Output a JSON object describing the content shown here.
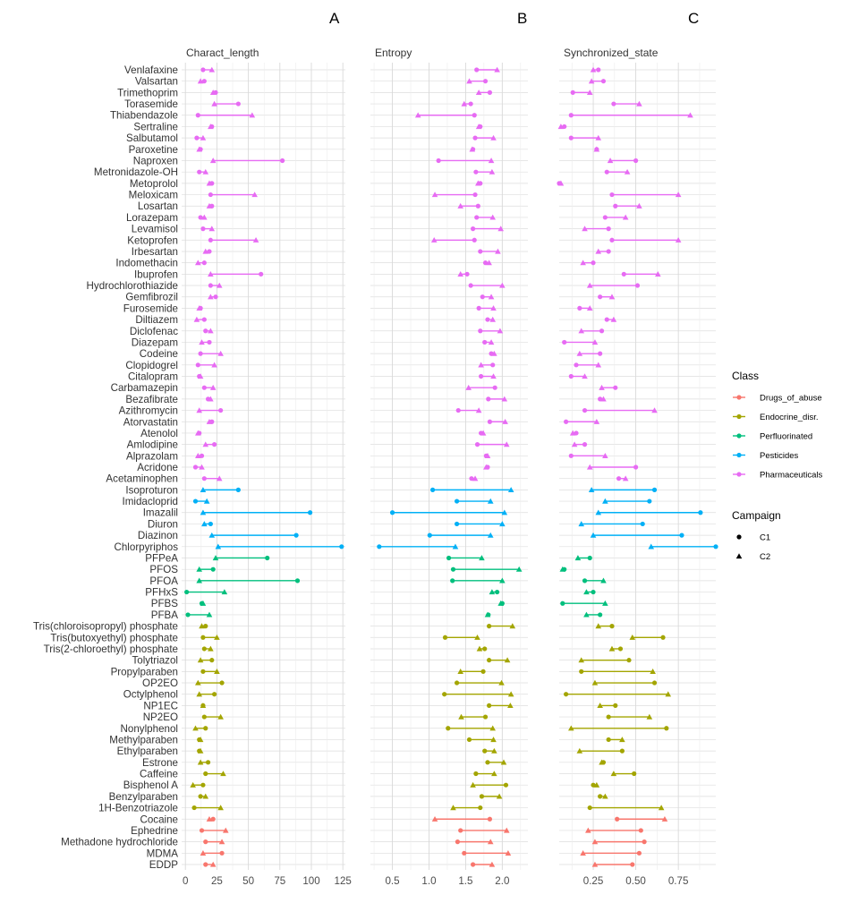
{
  "chart_data": {
    "type": "dumbbell",
    "panel_letters": [
      "A",
      "B",
      "C"
    ],
    "panels": [
      {
        "key": "char",
        "title": "Charact_length",
        "xlim": [
          -3,
          127
        ],
        "ticks": [
          0,
          25,
          50,
          75,
          100,
          125
        ]
      },
      {
        "key": "ent",
        "title": "Entropy",
        "xlim": [
          0.2,
          2.35
        ],
        "ticks": [
          0.5,
          1.0,
          1.5,
          2.0
        ],
        "tick_labels": [
          "0.5",
          "1.0",
          "1.5",
          "2.0"
        ]
      },
      {
        "key": "sync",
        "title": "Synchronized_state",
        "xlim": [
          0.05,
          0.97
        ],
        "ticks": [
          0.25,
          0.5,
          0.75
        ],
        "tick_labels": [
          "0.25",
          "0.50",
          "0.75"
        ]
      }
    ],
    "legend": {
      "class_title": "Class",
      "classes": [
        {
          "name": "Drugs_of_abuse",
          "color": "#F8766D"
        },
        {
          "name": "Endocrine_disr.",
          "color": "#A3A500"
        },
        {
          "name": "Perfluorinated",
          "color": "#00BF7D"
        },
        {
          "name": "Pesticides",
          "color": "#00B0F6"
        },
        {
          "name": "Pharmaceuticals",
          "color": "#E76BF3"
        }
      ],
      "campaign_title": "Campaign",
      "campaigns": [
        {
          "name": "C1",
          "shape": "circle"
        },
        {
          "name": "C2",
          "shape": "triangle"
        }
      ]
    },
    "compounds": [
      {
        "name": "Venlafaxine",
        "class": "Pharmaceuticals",
        "char": [
          14,
          21
        ],
        "ent": [
          1.65,
          1.93
        ],
        "sync": [
          0.28,
          0.25
        ]
      },
      {
        "name": "Valsartan",
        "class": "Pharmaceuticals",
        "char": [
          15,
          12
        ],
        "ent": [
          1.77,
          1.55
        ],
        "sync": [
          0.31,
          0.24
        ]
      },
      {
        "name": "Trimethoprim",
        "class": "Pharmaceuticals",
        "char": [
          24,
          22
        ],
        "ent": [
          1.83,
          1.68
        ],
        "sync": [
          0.13,
          0.23
        ]
      },
      {
        "name": "Torasemide",
        "class": "Pharmaceuticals",
        "char": [
          42,
          23
        ],
        "ent": [
          1.57,
          1.48
        ],
        "sync": [
          0.37,
          0.52
        ]
      },
      {
        "name": "Thiabendazole",
        "class": "Pharmaceuticals",
        "char": [
          10,
          53
        ],
        "ent": [
          1.62,
          0.85
        ],
        "sync": [
          0.12,
          0.82
        ]
      },
      {
        "name": "Sertraline",
        "class": "Pharmaceuticals",
        "char": [
          21,
          20
        ],
        "ent": [
          1.7,
          1.68
        ],
        "sync": [
          0.08,
          0.06
        ]
      },
      {
        "name": "Salbutamol",
        "class": "Pharmaceuticals",
        "char": [
          9,
          14
        ],
        "ent": [
          1.63,
          1.88
        ],
        "sync": [
          0.12,
          0.28
        ]
      },
      {
        "name": "Paroxetine",
        "class": "Pharmaceuticals",
        "char": [
          12,
          11
        ],
        "ent": [
          1.6,
          1.59
        ],
        "sync": [
          0.27,
          0.27
        ]
      },
      {
        "name": "Naproxen",
        "class": "Pharmaceuticals",
        "char": [
          77,
          22
        ],
        "ent": [
          1.13,
          1.85
        ],
        "sync": [
          0.5,
          0.35
        ]
      },
      {
        "name": "Metronidazole-OH",
        "class": "Pharmaceuticals",
        "char": [
          11,
          16
        ],
        "ent": [
          1.64,
          1.86
        ],
        "sync": [
          0.33,
          0.45
        ]
      },
      {
        "name": "Metoprolol",
        "class": "Pharmaceuticals",
        "char": [
          21,
          19
        ],
        "ent": [
          1.7,
          1.67
        ],
        "sync": [
          0.05,
          0.06
        ]
      },
      {
        "name": "Meloxicam",
        "class": "Pharmaceuticals",
        "char": [
          20,
          55
        ],
        "ent": [
          1.63,
          1.08
        ],
        "sync": [
          0.36,
          0.75
        ]
      },
      {
        "name": "Losartan",
        "class": "Pharmaceuticals",
        "char": [
          21,
          19
        ],
        "ent": [
          1.67,
          1.43
        ],
        "sync": [
          0.38,
          0.52
        ]
      },
      {
        "name": "Lorazepam",
        "class": "Pharmaceuticals",
        "char": [
          12,
          15
        ],
        "ent": [
          1.65,
          1.87
        ],
        "sync": [
          0.32,
          0.44
        ]
      },
      {
        "name": "Levamisol",
        "class": "Pharmaceuticals",
        "char": [
          14,
          21
        ],
        "ent": [
          1.6,
          1.98
        ],
        "sync": [
          0.34,
          0.2
        ]
      },
      {
        "name": "Ketoprofen",
        "class": "Pharmaceuticals",
        "char": [
          20,
          56
        ],
        "ent": [
          1.62,
          1.07
        ],
        "sync": [
          0.36,
          0.75
        ]
      },
      {
        "name": "Irbesartan",
        "class": "Pharmaceuticals",
        "char": [
          19,
          16
        ],
        "ent": [
          1.7,
          1.94
        ],
        "sync": [
          0.34,
          0.28
        ]
      },
      {
        "name": "Indomethacin",
        "class": "Pharmaceuticals",
        "char": [
          15,
          10
        ],
        "ent": [
          1.77,
          1.82
        ],
        "sync": [
          0.25,
          0.19
        ]
      },
      {
        "name": "Ibuprofen",
        "class": "Pharmaceuticals",
        "char": [
          60,
          20
        ],
        "ent": [
          1.52,
          1.43
        ],
        "sync": [
          0.43,
          0.63
        ]
      },
      {
        "name": "Hydrochlorothiazide",
        "class": "Pharmaceuticals",
        "char": [
          20,
          27
        ],
        "ent": [
          1.57,
          2.0
        ],
        "sync": [
          0.51,
          0.23
        ]
      },
      {
        "name": "Gemfibrozil",
        "class": "Pharmaceuticals",
        "char": [
          24,
          20
        ],
        "ent": [
          1.73,
          1.85
        ],
        "sync": [
          0.29,
          0.36
        ]
      },
      {
        "name": "Furosemide",
        "class": "Pharmaceuticals",
        "char": [
          12,
          11
        ],
        "ent": [
          1.68,
          1.88
        ],
        "sync": [
          0.17,
          0.23
        ]
      },
      {
        "name": "Diltiazem",
        "class": "Pharmaceuticals",
        "char": [
          15,
          9
        ],
        "ent": [
          1.8,
          1.87
        ],
        "sync": [
          0.33,
          0.37
        ]
      },
      {
        "name": "Diclofenac",
        "class": "Pharmaceuticals",
        "char": [
          16,
          20
        ],
        "ent": [
          1.7,
          1.97
        ],
        "sync": [
          0.3,
          0.18
        ]
      },
      {
        "name": "Diazepam",
        "class": "Pharmaceuticals",
        "char": [
          19,
          13
        ],
        "ent": [
          1.76,
          1.85
        ],
        "sync": [
          0.08,
          0.26
        ]
      },
      {
        "name": "Codeine",
        "class": "Pharmaceuticals",
        "char": [
          12,
          28
        ],
        "ent": [
          1.85,
          1.89
        ],
        "sync": [
          0.29,
          0.17
        ]
      },
      {
        "name": "Clopidogrel",
        "class": "Pharmaceuticals",
        "char": [
          10,
          23
        ],
        "ent": [
          1.87,
          1.71
        ],
        "sync": [
          0.15,
          0.28
        ]
      },
      {
        "name": "Citalopram",
        "class": "Pharmaceuticals",
        "char": [
          11,
          12
        ],
        "ent": [
          1.71,
          1.88
        ],
        "sync": [
          0.12,
          0.2
        ]
      },
      {
        "name": "Carbamazepin",
        "class": "Pharmaceuticals",
        "char": [
          15,
          22
        ],
        "ent": [
          1.9,
          1.54
        ],
        "sync": [
          0.38,
          0.3
        ]
      },
      {
        "name": "Bezafibrate",
        "class": "Pharmaceuticals",
        "char": [
          18,
          20
        ],
        "ent": [
          1.81,
          2.03
        ],
        "sync": [
          0.29,
          0.31
        ]
      },
      {
        "name": "Azithromycin",
        "class": "Pharmaceuticals",
        "char": [
          28,
          11
        ],
        "ent": [
          1.4,
          1.68
        ],
        "sync": [
          0.2,
          0.61
        ]
      },
      {
        "name": "Atorvastatin",
        "class": "Pharmaceuticals",
        "char": [
          21,
          19
        ],
        "ent": [
          1.83,
          2.04
        ],
        "sync": [
          0.09,
          0.27
        ]
      },
      {
        "name": "Atenolol",
        "class": "Pharmaceuticals",
        "char": [
          11,
          10
        ],
        "ent": [
          1.71,
          1.74
        ],
        "sync": [
          0.15,
          0.13
        ]
      },
      {
        "name": "Amlodipine",
        "class": "Pharmaceuticals",
        "char": [
          23,
          16
        ],
        "ent": [
          1.66,
          2.06
        ],
        "sync": [
          0.2,
          0.14
        ]
      },
      {
        "name": "Alprazolam",
        "class": "Pharmaceuticals",
        "char": [
          13,
          10
        ],
        "ent": [
          1.78,
          1.8
        ],
        "sync": [
          0.12,
          0.32
        ]
      },
      {
        "name": "Acridone",
        "class": "Pharmaceuticals",
        "char": [
          8,
          13
        ],
        "ent": [
          1.8,
          1.78
        ],
        "sync": [
          0.5,
          0.23
        ]
      },
      {
        "name": "Acetaminophen",
        "class": "Pharmaceuticals",
        "char": [
          15,
          27
        ],
        "ent": [
          1.58,
          1.63
        ],
        "sync": [
          0.4,
          0.44
        ]
      },
      {
        "name": "Isoproturon",
        "class": "Pesticides",
        "char": [
          42,
          14
        ],
        "ent": [
          1.05,
          2.12
        ],
        "sync": [
          0.61,
          0.24
        ]
      },
      {
        "name": "Imidacloprid",
        "class": "Pesticides",
        "char": [
          8,
          17
        ],
        "ent": [
          1.38,
          1.84
        ],
        "sync": [
          0.58,
          0.32
        ]
      },
      {
        "name": "Imazalil",
        "class": "Pesticides",
        "char": [
          99,
          14
        ],
        "ent": [
          0.5,
          2.03
        ],
        "sync": [
          0.88,
          0.28
        ]
      },
      {
        "name": "Diuron",
        "class": "Pesticides",
        "char": [
          20,
          15
        ],
        "ent": [
          1.38,
          2.0
        ],
        "sync": [
          0.54,
          0.18
        ]
      },
      {
        "name": "Diazinon",
        "class": "Pesticides",
        "char": [
          88,
          21
        ],
        "ent": [
          1.01,
          1.84
        ],
        "sync": [
          0.77,
          0.25
        ]
      },
      {
        "name": "Chlorpyriphos",
        "class": "Pesticides",
        "char": [
          124,
          26
        ],
        "ent": [
          0.32,
          1.36
        ],
        "sync": [
          0.97,
          0.59
        ]
      },
      {
        "name": "PFPeA",
        "class": "Perfluorinated",
        "char": [
          65,
          24
        ],
        "ent": [
          1.27,
          1.72
        ],
        "sync": [
          0.23,
          0.16
        ]
      },
      {
        "name": "PFOS",
        "class": "Perfluorinated",
        "char": [
          22,
          11
        ],
        "ent": [
          1.33,
          2.23
        ],
        "sync": [
          0.08,
          0.07
        ]
      },
      {
        "name": "PFOA",
        "class": "Perfluorinated",
        "char": [
          89,
          11
        ],
        "ent": [
          1.32,
          2.0
        ],
        "sync": [
          0.2,
          0.31
        ]
      },
      {
        "name": "PFHxS",
        "class": "Perfluorinated",
        "char": [
          1,
          31
        ],
        "ent": [
          1.93,
          1.86
        ],
        "sync": [
          0.25,
          0.21
        ]
      },
      {
        "name": "PFBS",
        "class": "Perfluorinated",
        "char": [
          13,
          14
        ],
        "ent": [
          2.0,
          1.98
        ],
        "sync": [
          0.07,
          0.32
        ]
      },
      {
        "name": "PFBA",
        "class": "Perfluorinated",
        "char": [
          2,
          19
        ],
        "ent": [
          1.81,
          1.8
        ],
        "sync": [
          0.29,
          0.21
        ]
      },
      {
        "name": "Tris(chloroisopropyl) phosphate",
        "class": "Endocrine_disr.",
        "char": [
          16,
          13
        ],
        "ent": [
          1.82,
          2.14
        ],
        "sync": [
          0.36,
          0.28
        ]
      },
      {
        "name": "Tris(butoxyethyl) phosphate",
        "class": "Endocrine_disr.",
        "char": [
          14,
          25
        ],
        "ent": [
          1.22,
          1.66
        ],
        "sync": [
          0.66,
          0.48
        ]
      },
      {
        "name": "Tris(2-chloroethyl) phosphate",
        "class": "Endocrine_disr.",
        "char": [
          15,
          20
        ],
        "ent": [
          1.76,
          1.69
        ],
        "sync": [
          0.41,
          0.36
        ]
      },
      {
        "name": "Tolytriazol",
        "class": "Endocrine_disr.",
        "char": [
          21,
          12
        ],
        "ent": [
          1.82,
          2.07
        ],
        "sync": [
          0.46,
          0.18
        ]
      },
      {
        "name": "Propylparaben",
        "class": "Endocrine_disr.",
        "char": [
          14,
          25
        ],
        "ent": [
          1.74,
          1.43
        ],
        "sync": [
          0.18,
          0.6
        ]
      },
      {
        "name": "OP2EO",
        "class": "Endocrine_disr.",
        "char": [
          29,
          10
        ],
        "ent": [
          1.38,
          1.99
        ],
        "sync": [
          0.61,
          0.26
        ]
      },
      {
        "name": "Octylphenol",
        "class": "Endocrine_disr.",
        "char": [
          23,
          11
        ],
        "ent": [
          1.21,
          2.12
        ],
        "sync": [
          0.09,
          0.69
        ]
      },
      {
        "name": "NP1EC",
        "class": "Endocrine_disr.",
        "char": [
          14,
          14
        ],
        "ent": [
          1.82,
          2.11
        ],
        "sync": [
          0.38,
          0.29
        ]
      },
      {
        "name": "NP2EO",
        "class": "Endocrine_disr.",
        "char": [
          15,
          28
        ],
        "ent": [
          1.77,
          1.44
        ],
        "sync": [
          0.34,
          0.58
        ]
      },
      {
        "name": "Nonylphenol",
        "class": "Endocrine_disr.",
        "char": [
          16,
          8
        ],
        "ent": [
          1.26,
          1.87
        ],
        "sync": [
          0.68,
          0.12
        ]
      },
      {
        "name": "Methylparaben",
        "class": "Endocrine_disr.",
        "char": [
          11,
          12
        ],
        "ent": [
          1.55,
          1.88
        ],
        "sync": [
          0.34,
          0.42
        ]
      },
      {
        "name": "Ethylparaben",
        "class": "Endocrine_disr.",
        "char": [
          11,
          12
        ],
        "ent": [
          1.76,
          1.89
        ],
        "sync": [
          0.42,
          0.17
        ]
      },
      {
        "name": "Estrone",
        "class": "Endocrine_disr.",
        "char": [
          18,
          12
        ],
        "ent": [
          1.8,
          2.02
        ],
        "sync": [
          0.31,
          0.3
        ]
      },
      {
        "name": "Caffeine",
        "class": "Endocrine_disr.",
        "char": [
          16,
          30
        ],
        "ent": [
          1.64,
          1.89
        ],
        "sync": [
          0.49,
          0.37
        ]
      },
      {
        "name": "Bisphenol A",
        "class": "Endocrine_disr.",
        "char": [
          14,
          6
        ],
        "ent": [
          2.05,
          1.6
        ],
        "sync": [
          0.25,
          0.27
        ]
      },
      {
        "name": "Benzylparaben",
        "class": "Endocrine_disr.",
        "char": [
          12,
          16
        ],
        "ent": [
          1.72,
          1.96
        ],
        "sync": [
          0.29,
          0.32
        ]
      },
      {
        "name": "1H-Benzotriazole",
        "class": "Endocrine_disr.",
        "char": [
          7,
          28
        ],
        "ent": [
          1.7,
          1.33
        ],
        "sync": [
          0.23,
          0.65
        ]
      },
      {
        "name": "Cocaine",
        "class": "Drugs_of_abuse",
        "char": [
          22,
          19
        ],
        "ent": [
          1.83,
          1.08
        ],
        "sync": [
          0.39,
          0.67
        ]
      },
      {
        "name": "Ephedrine",
        "class": "Drugs_of_abuse",
        "char": [
          13,
          32
        ],
        "ent": [
          1.43,
          2.06
        ],
        "sync": [
          0.53,
          0.22
        ]
      },
      {
        "name": "Methadone hydrochloride",
        "class": "Drugs_of_abuse",
        "char": [
          16,
          29
        ],
        "ent": [
          1.39,
          1.84
        ],
        "sync": [
          0.55,
          0.26
        ]
      },
      {
        "name": "MDMA",
        "class": "Drugs_of_abuse",
        "char": [
          29,
          14
        ],
        "ent": [
          1.48,
          2.08
        ],
        "sync": [
          0.52,
          0.19
        ]
      },
      {
        "name": "EDDP",
        "class": "Drugs_of_abuse",
        "char": [
          16,
          22
        ],
        "ent": [
          1.6,
          1.86
        ],
        "sync": [
          0.48,
          0.26
        ]
      }
    ]
  }
}
